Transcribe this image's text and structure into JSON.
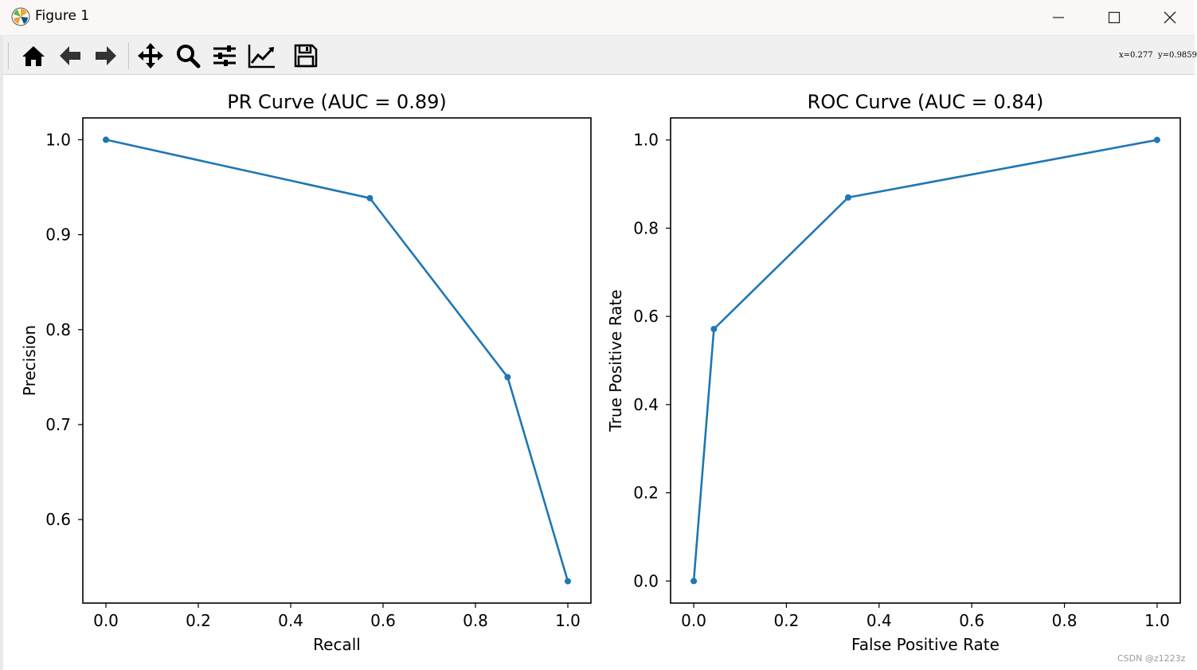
{
  "window": {
    "title": "Figure 1",
    "controls": [
      "minimize",
      "maximize",
      "close"
    ]
  },
  "toolbar": {
    "buttons": [
      {
        "name": "home-icon",
        "label": "Home"
      },
      {
        "name": "back-icon",
        "label": "Back"
      },
      {
        "name": "forward-icon",
        "label": "Forward"
      },
      {
        "name": "pan-icon",
        "label": "Pan"
      },
      {
        "name": "zoom-icon",
        "label": "Zoom"
      },
      {
        "name": "subplots-icon",
        "label": "Configure subplots"
      },
      {
        "name": "axes-edit-icon",
        "label": "Edit axis"
      },
      {
        "name": "save-icon",
        "label": "Save"
      }
    ],
    "coords": "x=0.277  y=0.9859"
  },
  "watermark": "CSDN @z1223z",
  "chart_data": [
    {
      "type": "line",
      "title": "PR Curve (AUC = 0.89)",
      "xlabel": "Recall",
      "ylabel": "Precision",
      "x": [
        0.0,
        0.5714,
        0.8696,
        1.0
      ],
      "y": [
        1.0,
        0.9385,
        0.75,
        0.535
      ],
      "xlim": [
        -0.05,
        1.05
      ],
      "ylim": [
        0.512,
        1.023
      ],
      "xticks": [
        0.0,
        0.2,
        0.4,
        0.6,
        0.8,
        1.0
      ],
      "yticks": [
        0.6,
        0.7,
        0.8,
        0.9,
        1.0
      ],
      "xticklabels": [
        "0.0",
        "0.2",
        "0.4",
        "0.6",
        "0.8",
        "1.0"
      ],
      "yticklabels": [
        "0.6",
        "0.7",
        "0.8",
        "0.9",
        "1.0"
      ],
      "grid": false,
      "marker": "circle",
      "color": "#1f77b4"
    },
    {
      "type": "line",
      "title": "ROC Curve (AUC = 0.84)",
      "xlabel": "False Positive Rate",
      "ylabel": "True Positive Rate",
      "x": [
        0.0,
        0.0435,
        0.3333,
        1.0
      ],
      "y": [
        0.0,
        0.5714,
        0.8696,
        1.0
      ],
      "xlim": [
        -0.05,
        1.05
      ],
      "ylim": [
        -0.05,
        1.05
      ],
      "xticks": [
        0.0,
        0.2,
        0.4,
        0.6,
        0.8,
        1.0
      ],
      "yticks": [
        0.0,
        0.2,
        0.4,
        0.6,
        0.8,
        1.0
      ],
      "xticklabels": [
        "0.0",
        "0.2",
        "0.4",
        "0.6",
        "0.8",
        "1.0"
      ],
      "yticklabels": [
        "0.0",
        "0.2",
        "0.4",
        "0.6",
        "0.8",
        "1.0"
      ],
      "grid": false,
      "marker": "circle",
      "color": "#1f77b4"
    }
  ]
}
